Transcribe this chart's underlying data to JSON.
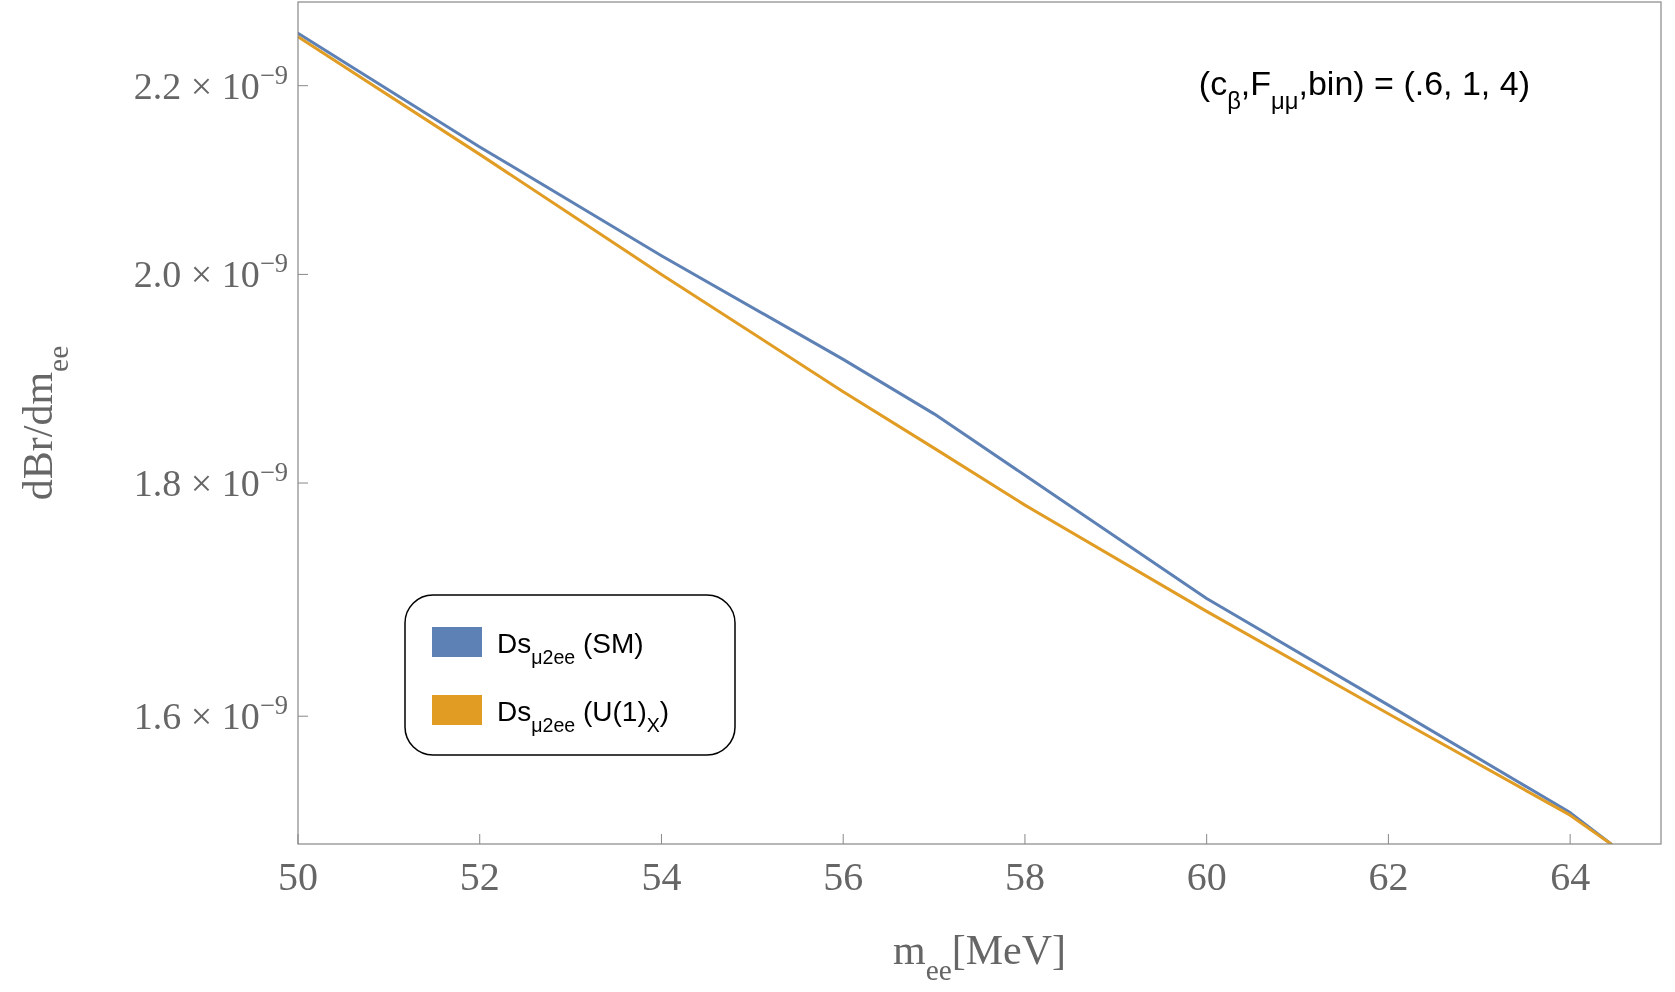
{
  "chart_data": {
    "type": "line",
    "xlabel": "m$_{ee}$[MeV]",
    "ylabel": "dBr/dm$_{ee}$",
    "annotations": [
      "(c$_{β}$,F$_{μμ}$,bin) = (.6, 1, 4)"
    ],
    "log": "y",
    "grid": false,
    "legend": "bottom left",
    "marker": "none",
    "line_style": "solid",
    "xlim": [
      50,
      65
    ],
    "xticks": [
      50,
      52,
      54,
      56,
      58,
      60,
      62,
      64
    ],
    "ylim": [
      1.5e-09,
      2.295e-09
    ],
    "yticks": [
      {
        "value": 1.6e-09,
        "label": "1.6 × 10$^{−9}$"
      },
      {
        "value": 1.8e-09,
        "label": "1.8 × 10$^{−9}$"
      },
      {
        "value": 2e-09,
        "label": "2.0 × 10$^{−9}$"
      },
      {
        "value": 2.2e-09,
        "label": "2.2 × 10$^{−9}$"
      }
    ],
    "x": [
      50,
      52,
      54,
      56,
      57,
      58,
      60,
      62,
      64,
      64.45
    ],
    "series": [
      {
        "name": "Ds$_{μ2ee}$ (SM)",
        "color": "#5e81b5",
        "values": [
          2.259e-09,
          2.133e-09,
          2.019e-09,
          1.916e-09,
          1.864e-09,
          1.807e-09,
          1.698e-09,
          1.609e-09,
          1.524e-09,
          1.5e-09
        ]
      },
      {
        "name": "Ds$_{μ2ee}$ (U(1)$_{X}$)",
        "color": "#e19c24",
        "values": [
          2.255e-09,
          2.125e-09,
          2e-09,
          1.885e-09,
          1.832e-09,
          1.78e-09,
          1.687e-09,
          1.602e-09,
          1.522e-09,
          1.5e-09
        ]
      }
    ]
  }
}
